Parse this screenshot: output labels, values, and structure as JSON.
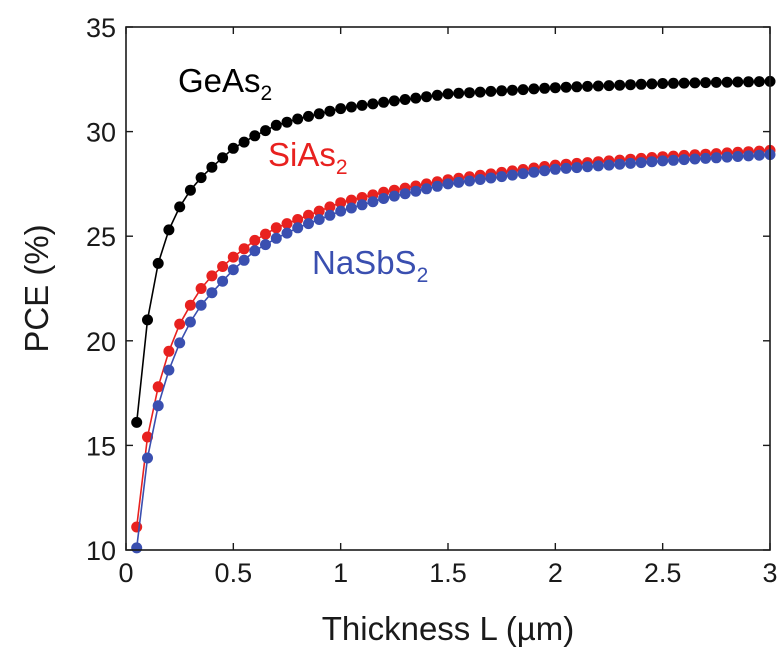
{
  "chart_data": {
    "type": "line",
    "title": "",
    "xlabel": "Thickness L (µm)",
    "ylabel": "PCE (%)",
    "xlim": [
      0,
      3
    ],
    "ylim": [
      10,
      35
    ],
    "xticks": [
      0,
      0.5,
      1,
      1.5,
      2,
      2.5,
      3
    ],
    "xtick_labels": [
      "0",
      "0.5",
      "1",
      "1.5",
      "2",
      "2.5",
      "3"
    ],
    "yticks": [
      10,
      15,
      20,
      25,
      30,
      35
    ],
    "ytick_labels": [
      "10",
      "15",
      "20",
      "25",
      "30",
      "35"
    ],
    "grid": false,
    "legend": "none (inline series labels)",
    "markers": "filled circles",
    "series": [
      {
        "label": "GeAs",
        "label_subscript": "2",
        "color": "#000000",
        "x": [
          0.05,
          0.1,
          0.15,
          0.2,
          0.25,
          0.3,
          0.35,
          0.4,
          0.5,
          0.6,
          0.7,
          0.8,
          1.0,
          1.2,
          1.5,
          2.0,
          2.5,
          3.0
        ],
        "y": [
          16.1,
          21.0,
          23.7,
          25.3,
          26.4,
          27.2,
          27.8,
          28.3,
          29.2,
          29.8,
          30.3,
          30.6,
          31.1,
          31.4,
          31.8,
          32.1,
          32.3,
          32.4
        ]
      },
      {
        "label": "SiAs",
        "label_subscript": "2",
        "color": "#e8211f",
        "x": [
          0.05,
          0.1,
          0.15,
          0.2,
          0.25,
          0.3,
          0.35,
          0.4,
          0.5,
          0.6,
          0.7,
          0.8,
          1.0,
          1.2,
          1.5,
          2.0,
          2.5,
          3.0
        ],
        "y": [
          11.1,
          15.4,
          17.8,
          19.5,
          20.8,
          21.7,
          22.5,
          23.1,
          24.0,
          24.8,
          25.4,
          25.8,
          26.6,
          27.1,
          27.7,
          28.4,
          28.8,
          29.1
        ]
      },
      {
        "label": "NaSbS",
        "label_subscript": "2",
        "color": "#3a4fb0",
        "x": [
          0.05,
          0.1,
          0.15,
          0.2,
          0.25,
          0.3,
          0.35,
          0.4,
          0.5,
          0.6,
          0.7,
          0.8,
          1.0,
          1.2,
          1.5,
          2.0,
          2.5,
          3.0
        ],
        "y": [
          10.1,
          14.4,
          16.9,
          18.6,
          19.9,
          20.9,
          21.7,
          22.3,
          23.4,
          24.3,
          24.9,
          25.4,
          26.2,
          26.8,
          27.5,
          28.2,
          28.6,
          28.9
        ]
      }
    ]
  }
}
